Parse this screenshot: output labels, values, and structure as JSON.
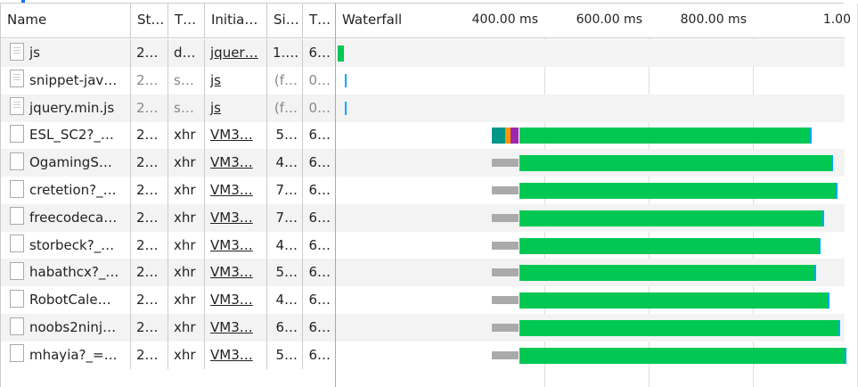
{
  "columns": [
    "Name",
    "St…",
    "T…",
    "Initia…",
    "Si…",
    "T…"
  ],
  "waterfall": {
    "title": "Waterfall",
    "ticks": [
      {
        "label": "400.00 ms",
        "ms": 400
      },
      {
        "label": "600.00 ms",
        "ms": 600
      },
      {
        "label": "800.00 ms",
        "ms": 800
      },
      {
        "label": "1.00",
        "ms": 1000
      }
    ]
  },
  "colors": {
    "waiting": "#aaaaaa",
    "dns": "#009688",
    "connect": "#ff9800",
    "ssl": "#9c27b0",
    "download": "#00c853",
    "receive": "#03a9f4"
  },
  "rows": [
    {
      "name": "js",
      "status": "2…",
      "type": "d…",
      "initiator": "jquer…",
      "size": "1.…",
      "time": "6…",
      "icon": "document-icon",
      "grey": false,
      "timing": [
        {
          "kind": "download",
          "start": 3,
          "end": 15
        }
      ]
    },
    {
      "name": "snippet-jav…",
      "status": "2…",
      "type": "s…",
      "initiator": "js",
      "size": "(f…",
      "time": "0…",
      "icon": "document-icon",
      "grey": true,
      "timing": [
        {
          "kind": "receive",
          "start": 17,
          "end": 21
        }
      ]
    },
    {
      "name": "jquery.min.js",
      "status": "2…",
      "type": "s…",
      "initiator": "js",
      "size": "(f…",
      "time": "0…",
      "icon": "document-icon",
      "grey": true,
      "timing": [
        {
          "kind": "receive",
          "start": 17,
          "end": 21
        }
      ]
    },
    {
      "name": "ESL_SC2?_…",
      "status": "2…",
      "type": "xhr",
      "initiator": "VM3…",
      "size": "5…",
      "time": "6…",
      "icon": "blank-file-icon",
      "grey": false,
      "timing": [
        {
          "kind": "dns",
          "start": 299,
          "end": 325
        },
        {
          "kind": "connect",
          "start": 325,
          "end": 335
        },
        {
          "kind": "ssl",
          "start": 335,
          "end": 350
        },
        {
          "kind": "download",
          "start": 352,
          "end": 913
        }
      ]
    },
    {
      "name": "OgamingS…",
      "status": "2…",
      "type": "xhr",
      "initiator": "VM3…",
      "size": "4…",
      "time": "6…",
      "icon": "blank-file-icon",
      "grey": false,
      "timing": [
        {
          "kind": "waiting",
          "start": 299,
          "end": 350
        },
        {
          "kind": "download",
          "start": 352,
          "end": 954
        }
      ]
    },
    {
      "name": "cretetion?_…",
      "status": "2…",
      "type": "xhr",
      "initiator": "VM3…",
      "size": "7…",
      "time": "6…",
      "icon": "blank-file-icon",
      "grey": false,
      "timing": [
        {
          "kind": "waiting",
          "start": 299,
          "end": 350
        },
        {
          "kind": "download",
          "start": 352,
          "end": 962
        }
      ]
    },
    {
      "name": "freecodeca…",
      "status": "2…",
      "type": "xhr",
      "initiator": "VM3…",
      "size": "7…",
      "time": "6…",
      "icon": "blank-file-icon",
      "grey": false,
      "timing": [
        {
          "kind": "waiting",
          "start": 299,
          "end": 350
        },
        {
          "kind": "download",
          "start": 352,
          "end": 937
        }
      ]
    },
    {
      "name": "storbeck?_…",
      "status": "2…",
      "type": "xhr",
      "initiator": "VM3…",
      "size": "4…",
      "time": "6…",
      "icon": "blank-file-icon",
      "grey": false,
      "timing": [
        {
          "kind": "waiting",
          "start": 299,
          "end": 350
        },
        {
          "kind": "download",
          "start": 352,
          "end": 930
        }
      ]
    },
    {
      "name": "habathcx?_…",
      "status": "2…",
      "type": "xhr",
      "initiator": "VM3…",
      "size": "5…",
      "time": "6…",
      "icon": "blank-file-icon",
      "grey": false,
      "timing": [
        {
          "kind": "waiting",
          "start": 299,
          "end": 350
        },
        {
          "kind": "download",
          "start": 352,
          "end": 921
        }
      ]
    },
    {
      "name": "RobotCale…",
      "status": "2…",
      "type": "xhr",
      "initiator": "VM3…",
      "size": "4…",
      "time": "6…",
      "icon": "blank-file-icon",
      "grey": false,
      "timing": [
        {
          "kind": "waiting",
          "start": 299,
          "end": 350
        },
        {
          "kind": "download",
          "start": 352,
          "end": 947
        }
      ]
    },
    {
      "name": "noobs2ninj…",
      "status": "2…",
      "type": "xhr",
      "initiator": "VM3…",
      "size": "6…",
      "time": "6…",
      "icon": "blank-file-icon",
      "grey": false,
      "timing": [
        {
          "kind": "waiting",
          "start": 299,
          "end": 350
        },
        {
          "kind": "download",
          "start": 352,
          "end": 968
        }
      ]
    },
    {
      "name": "mhayia?_=…",
      "status": "2…",
      "type": "xhr",
      "initiator": "VM3…",
      "size": "5…",
      "time": "6…",
      "icon": "blank-file-icon",
      "grey": false,
      "timing": [
        {
          "kind": "waiting",
          "start": 299,
          "end": 350
        },
        {
          "kind": "download",
          "start": 352,
          "end": 980
        }
      ]
    }
  ]
}
